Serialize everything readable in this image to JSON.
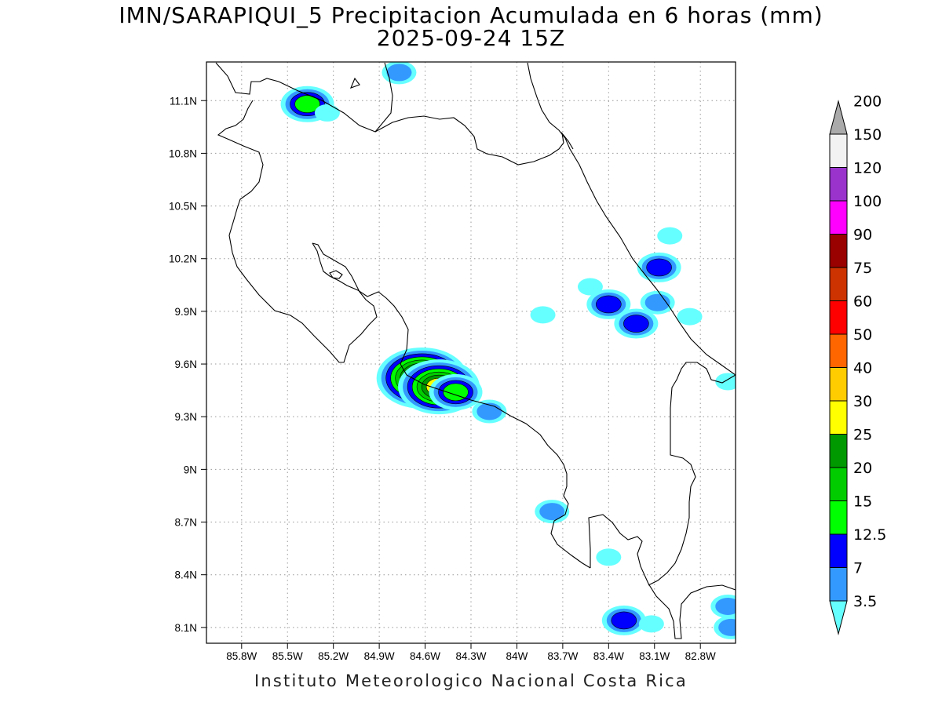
{
  "title": {
    "line1": "IMN/SARAPIQUI_5 Precipitacion Acumulada en 6 horas (mm)",
    "line2": "2025-09-24 15Z"
  },
  "footer": "Instituto Meteorologico Nacional Costa Rica",
  "map": {
    "lon_range": [
      -86.03,
      -82.57
    ],
    "lat_range": [
      8.01,
      11.32
    ],
    "grid": true,
    "lon_ticks": [
      {
        "value": -85.8,
        "label": "85.8W"
      },
      {
        "value": -85.5,
        "label": "85.5W"
      },
      {
        "value": -85.2,
        "label": "85.2W"
      },
      {
        "value": -84.9,
        "label": "84.9W"
      },
      {
        "value": -84.6,
        "label": "84.6W"
      },
      {
        "value": -84.3,
        "label": "84.3W"
      },
      {
        "value": -84.0,
        "label": "84W"
      },
      {
        "value": -83.7,
        "label": "83.7W"
      },
      {
        "value": -83.4,
        "label": "83.4W"
      },
      {
        "value": -83.1,
        "label": "83.1W"
      },
      {
        "value": -82.8,
        "label": "82.8W"
      }
    ],
    "lat_ticks": [
      {
        "value": 11.1,
        "label": "11.1N"
      },
      {
        "value": 10.8,
        "label": "10.8N"
      },
      {
        "value": 10.5,
        "label": "10.5N"
      },
      {
        "value": 10.2,
        "label": "10.2N"
      },
      {
        "value": 9.9,
        "label": "9.9N"
      },
      {
        "value": 9.6,
        "label": "9.6N"
      },
      {
        "value": 9.3,
        "label": "9.3N"
      },
      {
        "value": 9.0,
        "label": "9N"
      },
      {
        "value": 8.7,
        "label": "8.7N"
      },
      {
        "value": 8.4,
        "label": "8.4N"
      },
      {
        "value": 8.1,
        "label": "8.1N"
      }
    ],
    "precip_cells": [
      {
        "lon": -85.37,
        "lat": 11.08,
        "level": 4
      },
      {
        "lon": -85.24,
        "lat": 11.03,
        "level": 1
      },
      {
        "lon": -84.77,
        "lat": 11.26,
        "level": 2
      },
      {
        "lon": -84.62,
        "lat": 9.52,
        "level": 8
      },
      {
        "lon": -84.51,
        "lat": 9.47,
        "level": 7
      },
      {
        "lon": -84.4,
        "lat": 9.44,
        "level": 4
      },
      {
        "lon": -84.18,
        "lat": 9.33,
        "level": 2
      },
      {
        "lon": -83.77,
        "lat": 8.76,
        "level": 2
      },
      {
        "lon": -83.52,
        "lat": 10.04,
        "level": 1
      },
      {
        "lon": -83.4,
        "lat": 9.94,
        "level": 3
      },
      {
        "lon": -83.22,
        "lat": 9.83,
        "level": 3
      },
      {
        "lon": -83.07,
        "lat": 10.15,
        "level": 3
      },
      {
        "lon": -83.0,
        "lat": 10.33,
        "level": 1
      },
      {
        "lon": -83.08,
        "lat": 9.95,
        "level": 2
      },
      {
        "lon": -83.83,
        "lat": 9.88,
        "level": 1
      },
      {
        "lon": -83.3,
        "lat": 8.14,
        "level": 3
      },
      {
        "lon": -83.12,
        "lat": 8.12,
        "level": 1
      },
      {
        "lon": -82.6,
        "lat": 8.1,
        "level": 2
      },
      {
        "lon": -82.62,
        "lat": 8.22,
        "level": 2
      },
      {
        "lon": -83.4,
        "lat": 8.5,
        "level": 1
      },
      {
        "lon": -82.62,
        "lat": 9.5,
        "level": 1
      },
      {
        "lon": -82.87,
        "lat": 9.87,
        "level": 1
      }
    ]
  },
  "colorbar": {
    "levels": [
      "3.5",
      "7",
      "12.5",
      "15",
      "20",
      "25",
      "30",
      "40",
      "50",
      "60",
      "75",
      "90",
      "100",
      "120",
      "150",
      "200"
    ],
    "colors": [
      "#66ffff",
      "#3399ff",
      "#0000ff",
      "#00ff00",
      "#00cc00",
      "#009900",
      "#ffff00",
      "#ffcc00",
      "#ff6600",
      "#ff0000",
      "#cc3300",
      "#990000",
      "#ff00ff",
      "#9933cc",
      "#f2f2f2",
      "#aaaaaa"
    ]
  }
}
